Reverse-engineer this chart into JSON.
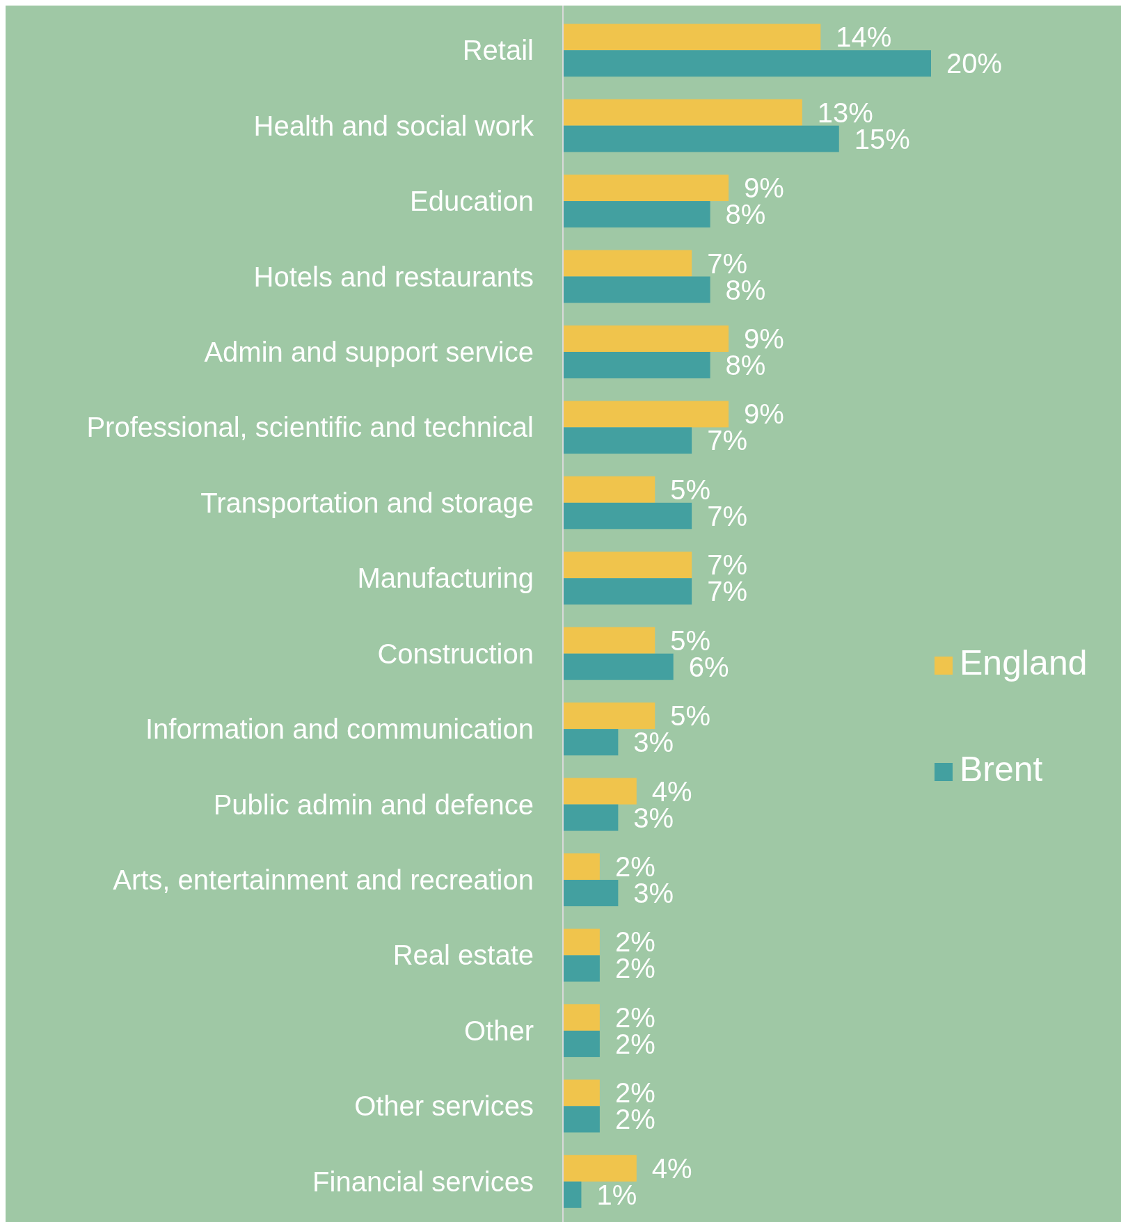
{
  "chart_data": {
    "type": "bar",
    "orientation": "horizontal",
    "legend": "right",
    "categories": [
      "Retail",
      "Health and social work",
      "Education",
      "Hotels and restaurants",
      "Admin and support service",
      "Professional, scientific and technical",
      "Transportation and storage",
      "Manufacturing",
      "Construction",
      "Information and communication",
      "Public admin and defence",
      "Arts, entertainment and recreation",
      "Real estate",
      "Other",
      "Other services",
      "Financial services"
    ],
    "series": [
      {
        "name": "England",
        "color": "#f0c44c",
        "values": [
          14,
          13,
          9,
          7,
          9,
          9,
          5,
          7,
          5,
          5,
          4,
          2,
          2,
          2,
          2,
          4
        ],
        "value_labels": [
          "14%",
          "13%",
          "9%",
          "7%",
          "9%",
          "9%",
          "5%",
          "7%",
          "5%",
          "5%",
          "4%",
          "2%",
          "2%",
          "2%",
          "2%",
          "4%"
        ]
      },
      {
        "name": "Brent",
        "color": "#43a0a0",
        "values": [
          20,
          15,
          8,
          8,
          8,
          7,
          7,
          7,
          6,
          3,
          3,
          3,
          2,
          2,
          2,
          1
        ],
        "value_labels": [
          "20%",
          "15%",
          "8%",
          "8%",
          "8%",
          "7%",
          "7%",
          "7%",
          "6%",
          "3%",
          "3%",
          "3%",
          "2%",
          "2%",
          "2%",
          "1%"
        ]
      }
    ]
  }
}
